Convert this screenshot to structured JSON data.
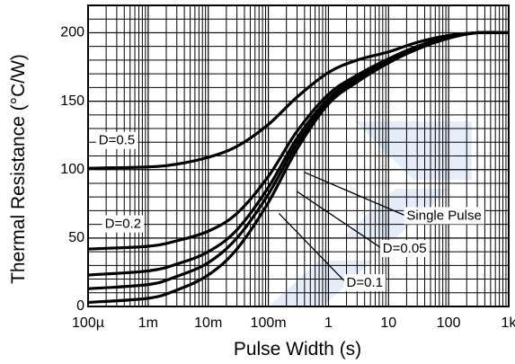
{
  "chart_data": {
    "type": "line",
    "title": "",
    "xlabel": "Pulse Width (s)",
    "ylabel": "Thermal Resistance (°C/W)",
    "x_scale": "log",
    "xlim": [
      0.0001,
      1000
    ],
    "ylim": [
      0,
      220
    ],
    "x_ticks": [
      {
        "value": 0.0001,
        "label": "100µ"
      },
      {
        "value": 0.001,
        "label": "1m"
      },
      {
        "value": 0.01,
        "label": "10m"
      },
      {
        "value": 0.1,
        "label": "100m"
      },
      {
        "value": 1,
        "label": "1"
      },
      {
        "value": 10,
        "label": "10"
      },
      {
        "value": 100,
        "label": "100"
      },
      {
        "value": 1000,
        "label": "1k"
      }
    ],
    "y_ticks": [
      {
        "value": 0,
        "label": "0"
      },
      {
        "value": 50,
        "label": "50"
      },
      {
        "value": 100,
        "label": "100"
      },
      {
        "value": 150,
        "label": "150"
      },
      {
        "value": 200,
        "label": "200"
      }
    ],
    "grid": true,
    "series": [
      {
        "name": "D=0.5",
        "x": [
          0.0001,
          0.001,
          0.003,
          0.01,
          0.03,
          0.1,
          0.3,
          1,
          3,
          10,
          30,
          100,
          300,
          1000
        ],
        "y": [
          101,
          102,
          104,
          109,
          117,
          133,
          153,
          171,
          180,
          186,
          193,
          198,
          200,
          200
        ]
      },
      {
        "name": "D=0.2",
        "x": [
          0.0001,
          0.001,
          0.003,
          0.01,
          0.03,
          0.1,
          0.3,
          1,
          3,
          10,
          30,
          100,
          300,
          1000
        ],
        "y": [
          42,
          44,
          48,
          55,
          68,
          95,
          128,
          155,
          169,
          181,
          190,
          197,
          200,
          200
        ]
      },
      {
        "name": "D=0.1",
        "x": [
          0.0001,
          0.001,
          0.003,
          0.01,
          0.03,
          0.1,
          0.3,
          1,
          3,
          10,
          30,
          100,
          300,
          1000
        ],
        "y": [
          23,
          26,
          31,
          40,
          56,
          87,
          123,
          152,
          167,
          180,
          190,
          197,
          200,
          200
        ]
      },
      {
        "name": "D=0.05",
        "x": [
          0.0001,
          0.001,
          0.003,
          0.01,
          0.03,
          0.1,
          0.3,
          1,
          3,
          10,
          30,
          100,
          300,
          1000
        ],
        "y": [
          13,
          16,
          22,
          32,
          50,
          82,
          119,
          150,
          166,
          179,
          189,
          197,
          200,
          200
        ]
      },
      {
        "name": "Single Pulse",
        "x": [
          0.0001,
          0.001,
          0.003,
          0.01,
          0.03,
          0.1,
          0.3,
          1,
          3,
          10,
          30,
          100,
          300,
          1000
        ],
        "y": [
          3,
          6,
          12,
          23,
          42,
          76,
          115,
          148,
          164,
          178,
          188,
          196,
          200,
          200
        ]
      }
    ],
    "annotations": [
      {
        "text": "D=0.5",
        "x": 0.00015,
        "y": 121
      },
      {
        "text": "D=0.2",
        "x": 0.00019,
        "y": 60
      },
      {
        "text": "Single Pulse",
        "x": 20,
        "y": 66
      },
      {
        "text": "D=0.05",
        "x": 8,
        "y": 42
      },
      {
        "text": "D=0.1",
        "x": 2,
        "y": 17
      }
    ],
    "leaders": [
      {
        "label": "Single Pulse",
        "from": [
          20,
          66
        ],
        "to": [
          0.4,
          98
        ]
      },
      {
        "label": "D=0.05",
        "from": [
          8,
          42
        ],
        "to": [
          0.3,
          84
        ]
      },
      {
        "label": "D=0.1",
        "from": [
          2,
          17
        ],
        "to": [
          0.15,
          68
        ]
      }
    ]
  }
}
